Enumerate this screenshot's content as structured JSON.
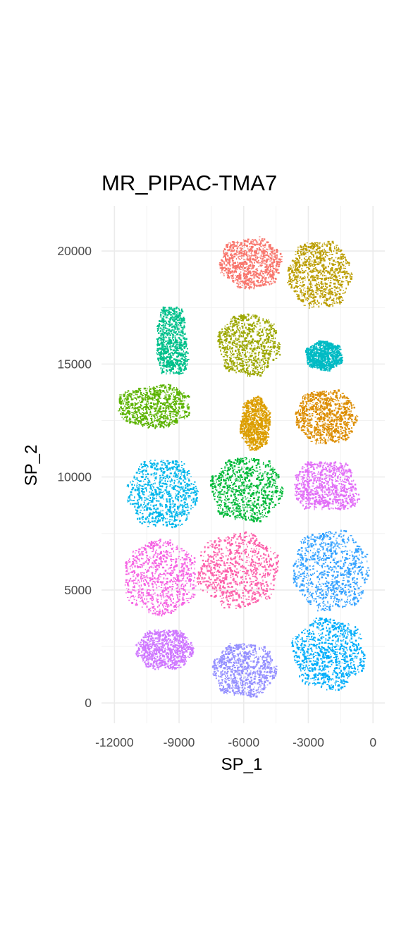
{
  "chart_data": {
    "type": "scatter",
    "title": "MR_PIPAC-TMA7",
    "xlabel": "SP_1",
    "ylabel": "SP_2",
    "xlim": [
      -12600,
      550
    ],
    "ylim": [
      -900,
      22000
    ],
    "x_ticks": [
      -12000,
      -9000,
      -6000,
      -3000,
      0
    ],
    "y_ticks": [
      0,
      5000,
      10000,
      15000,
      20000
    ],
    "x_tick_labels": [
      "-12000",
      "-9000",
      "-6000",
      "-3000",
      "0"
    ],
    "y_tick_labels": [
      "0",
      "5000",
      "10000",
      "15000",
      "20000"
    ],
    "grid": true,
    "legend": "none",
    "series": [
      {
        "color": "#F8766D",
        "shape": "blob",
        "cx": -5700,
        "cy": 19500,
        "rx": 1450,
        "ry": 1150
      },
      {
        "color": "#BB9D00",
        "shape": "blob",
        "cx": -2500,
        "cy": 19000,
        "rx": 1500,
        "ry": 1500
      },
      {
        "color": "#00C08B",
        "shape": "triangle",
        "cx": -9300,
        "cy": 16000,
        "rx": 800,
        "ry": 1550
      },
      {
        "color": "#9CA700",
        "shape": "blob",
        "cx": -5800,
        "cy": 15900,
        "rx": 1450,
        "ry": 1400
      },
      {
        "color": "#00BBC4",
        "shape": "blob",
        "cx": -2300,
        "cy": 15400,
        "rx": 850,
        "ry": 650
      },
      {
        "color": "#5BB300",
        "shape": "band",
        "cx": -10200,
        "cy": 13200,
        "rx": 1650,
        "ry": 1000
      },
      {
        "color": "#DC9E00",
        "shape": "blob",
        "cx": -5500,
        "cy": 12400,
        "rx": 700,
        "ry": 1200
      },
      {
        "color": "#DC8D00",
        "shape": "blob",
        "cx": -2200,
        "cy": 12700,
        "rx": 1450,
        "ry": 1200
      },
      {
        "color": "#00B6EB",
        "shape": "blob",
        "cx": -9800,
        "cy": 9300,
        "rx": 1650,
        "ry": 1550
      },
      {
        "color": "#00B938",
        "shape": "blob",
        "cx": -5900,
        "cy": 9500,
        "rx": 1700,
        "ry": 1450
      },
      {
        "color": "#E26FF7",
        "shape": "triangle",
        "cx": -2100,
        "cy": 9600,
        "rx": 1650,
        "ry": 1100
      },
      {
        "color": "#F564E3",
        "shape": "blob",
        "cx": -9900,
        "cy": 5600,
        "rx": 1700,
        "ry": 1700
      },
      {
        "color": "#FC61AB",
        "shape": "blob",
        "cx": -6300,
        "cy": 5900,
        "rx": 1900,
        "ry": 1700
      },
      {
        "color": "#35A2FF",
        "shape": "blob",
        "cx": -2000,
        "cy": 5900,
        "rx": 1800,
        "ry": 1800
      },
      {
        "color": "#CF78FF",
        "shape": "blob",
        "cx": -9700,
        "cy": 2400,
        "rx": 1350,
        "ry": 900
      },
      {
        "color": "#9590FF",
        "shape": "blob",
        "cx": -6000,
        "cy": 1500,
        "rx": 1500,
        "ry": 1200
      },
      {
        "color": "#00ADFA",
        "shape": "blob",
        "cx": -2100,
        "cy": 2200,
        "rx": 1700,
        "ry": 1600
      }
    ]
  }
}
